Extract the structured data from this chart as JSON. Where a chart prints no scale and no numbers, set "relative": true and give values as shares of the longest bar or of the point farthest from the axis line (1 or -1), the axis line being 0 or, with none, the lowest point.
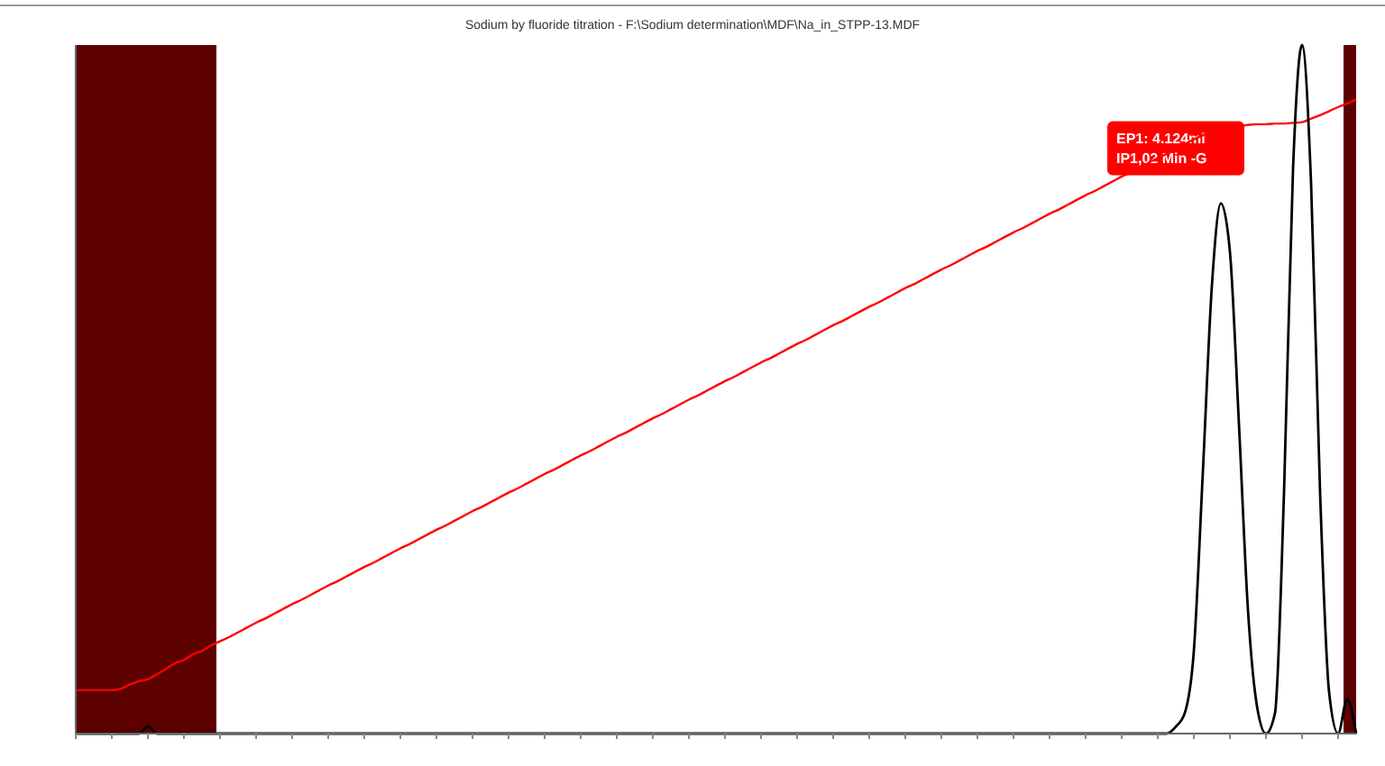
{
  "chart_data": {
    "type": "line",
    "title": "Sodium by fluoride titration - F:\\Sodium determination\\MDF\\Na_in_STPP-13.MDF",
    "relative": true,
    "marker": "none",
    "line_style": "solid",
    "grid": false,
    "categories": [
      null,
      null,
      null,
      null,
      null,
      null,
      null,
      null,
      null,
      null,
      null,
      null,
      null,
      null,
      null,
      null,
      null,
      null,
      null,
      null,
      null,
      null,
      null,
      null,
      null,
      null,
      null,
      null,
      null,
      null,
      null,
      null,
      null,
      null,
      null,
      null,
      null,
      null,
      null,
      null,
      null,
      null,
      null,
      null,
      null,
      null,
      null,
      null,
      null,
      null,
      null,
      null,
      null,
      null,
      null,
      null,
      null,
      null,
      null,
      null,
      null,
      null,
      null,
      null,
      null,
      null,
      null,
      null,
      null,
      null,
      null,
      null,
      null,
      null,
      null,
      null,
      null,
      null,
      null,
      null,
      null,
      null,
      null,
      null,
      null,
      null,
      null,
      null,
      null,
      null,
      null,
      null,
      null,
      null,
      null,
      null,
      null,
      null,
      null,
      null,
      null,
      null,
      null,
      null,
      null,
      null,
      null,
      null,
      null,
      null,
      null,
      null,
      null,
      null,
      null,
      null,
      null,
      null,
      null,
      null,
      null,
      null,
      null,
      null,
      null,
      null,
      null,
      null,
      null,
      null,
      null,
      null,
      null,
      null,
      null,
      null,
      null,
      null,
      null,
      null,
      null,
      null,
      null
    ],
    "series": [
      {
        "color": "#ff0000",
        "values": [
          0.063,
          0.063,
          0.063,
          0.063,
          0.063,
          0.065,
          0.071,
          0.076,
          0.079,
          0.086,
          0.094,
          0.102,
          0.107,
          0.115,
          0.12,
          0.128,
          0.134,
          0.14,
          0.147,
          0.154,
          0.161,
          0.167,
          0.174,
          0.181,
          0.188,
          0.194,
          0.201,
          0.208,
          0.215,
          0.221,
          0.228,
          0.235,
          0.242,
          0.248,
          0.255,
          0.262,
          0.269,
          0.275,
          0.282,
          0.289,
          0.296,
          0.302,
          0.309,
          0.316,
          0.323,
          0.329,
          0.336,
          0.343,
          0.35,
          0.356,
          0.363,
          0.37,
          0.377,
          0.383,
          0.39,
          0.397,
          0.404,
          0.41,
          0.417,
          0.424,
          0.431,
          0.437,
          0.444,
          0.451,
          0.458,
          0.464,
          0.471,
          0.478,
          0.485,
          0.491,
          0.498,
          0.505,
          0.512,
          0.518,
          0.525,
          0.532,
          0.539,
          0.545,
          0.552,
          0.559,
          0.566,
          0.572,
          0.579,
          0.586,
          0.593,
          0.599,
          0.606,
          0.613,
          0.62,
          0.626,
          0.633,
          0.64,
          0.647,
          0.653,
          0.66,
          0.667,
          0.674,
          0.68,
          0.687,
          0.694,
          0.701,
          0.707,
          0.714,
          0.721,
          0.728,
          0.734,
          0.741,
          0.748,
          0.755,
          0.761,
          0.768,
          0.775,
          0.782,
          0.788,
          0.795,
          0.802,
          0.809,
          0.815,
          0.822,
          0.829,
          0.836,
          0.842,
          0.849,
          0.856,
          0.863,
          0.869,
          0.876,
          0.882,
          0.883,
          0.883,
          0.884,
          0.885,
          0.885,
          0.886,
          0.886,
          0.887,
          0.888,
          0.893,
          0.898,
          0.904,
          0.91,
          0.915,
          0.921
        ]
      },
      {
        "color": "#000000",
        "values": [
          0,
          0,
          0,
          0,
          0,
          0,
          0,
          0,
          0.01,
          0,
          0,
          0,
          0,
          0,
          0,
          0,
          0,
          0,
          0,
          0,
          0,
          0,
          0,
          0,
          0,
          0,
          0,
          0,
          0,
          0,
          0,
          0,
          0,
          0,
          0,
          0,
          0,
          0,
          0,
          0,
          0,
          0,
          0,
          0,
          0,
          0,
          0,
          0,
          0,
          0,
          0,
          0,
          0,
          0,
          0,
          0,
          0,
          0,
          0,
          0,
          0,
          0,
          0,
          0,
          0,
          0,
          0,
          0,
          0,
          0,
          0,
          0,
          0,
          0,
          0,
          0,
          0,
          0,
          0,
          0,
          0,
          0,
          0,
          0,
          0,
          0,
          0,
          0,
          0,
          0,
          0,
          0,
          0,
          0,
          0,
          0,
          0,
          0,
          0,
          0,
          0,
          0,
          0,
          0,
          0,
          0,
          0,
          0,
          0,
          0,
          0,
          0,
          0,
          0,
          0,
          0,
          0,
          0,
          0,
          0,
          0,
          0,
          0.01,
          0.03,
          0.12,
          0.38,
          0.65,
          0.77,
          0.7,
          0.45,
          0.18,
          0.04,
          0,
          0.03,
          0.35,
          0.82,
          1,
          0.8,
          0.35,
          0.06,
          0,
          0.05,
          0
        ]
      }
    ],
    "annotations": [
      "EP1: 4.124ml\nIP1,02 Min -G"
    ]
  }
}
